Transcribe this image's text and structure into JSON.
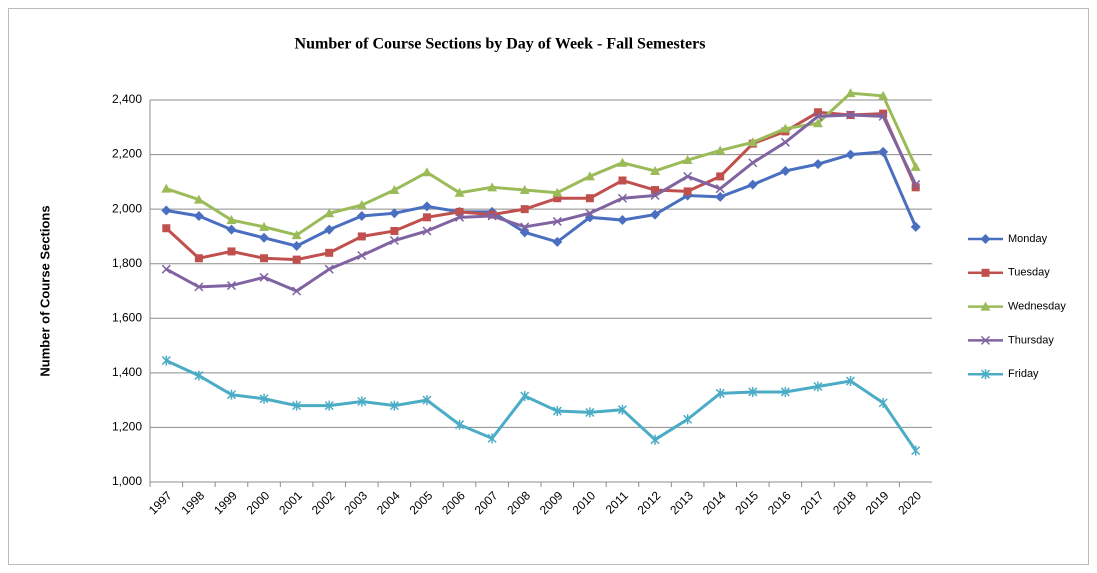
{
  "chart_data": {
    "type": "line",
    "title": "Number of Course Sections by Day of Week - Fall Semesters",
    "y_label": "Number of Course Sections",
    "categories": [
      "1997",
      "1998",
      "1999",
      "2000",
      "2001",
      "2002",
      "2003",
      "2004",
      "2005",
      "2006",
      "2007",
      "2008",
      "2009",
      "2010",
      "2011",
      "2012",
      "2013",
      "2014",
      "2015",
      "2016",
      "2017",
      "2018",
      "2019",
      "2020"
    ],
    "series": [
      {
        "name": "Monday",
        "color": "#4a6fc0",
        "marker": "diamond",
        "values": [
          1995,
          1975,
          1925,
          1895,
          1865,
          1925,
          1975,
          1985,
          2010,
          1990,
          1990,
          1915,
          1880,
          1970,
          1960,
          1980,
          2050,
          2045,
          2090,
          2140,
          2165,
          2200,
          2210,
          1935
        ]
      },
      {
        "name": "Tuesday",
        "color": "#c0504d",
        "marker": "square",
        "values": [
          1930,
          1820,
          1845,
          1820,
          1815,
          1840,
          1900,
          1920,
          1970,
          1990,
          1980,
          2000,
          2040,
          2040,
          2105,
          2070,
          2065,
          2120,
          2240,
          2285,
          2355,
          2345,
          2350,
          2080
        ]
      },
      {
        "name": "Wednesday",
        "color": "#9bbb59",
        "marker": "triangle",
        "values": [
          2075,
          2035,
          1960,
          1935,
          1905,
          1985,
          2015,
          2070,
          2135,
          2060,
          2080,
          2070,
          2060,
          2120,
          2170,
          2140,
          2180,
          2215,
          2245,
          2295,
          2315,
          2425,
          2415,
          2155
        ]
      },
      {
        "name": "Thursday",
        "color": "#8064a2",
        "marker": "x",
        "values": [
          1780,
          1715,
          1720,
          1750,
          1700,
          1780,
          1830,
          1885,
          1920,
          1970,
          1975,
          1935,
          1955,
          1985,
          2040,
          2050,
          2120,
          2075,
          2170,
          2245,
          2340,
          2345,
          2340,
          2090
        ]
      },
      {
        "name": "Friday",
        "color": "#4bacc6",
        "marker": "star",
        "values": [
          1445,
          1390,
          1320,
          1305,
          1280,
          1280,
          1295,
          1280,
          1300,
          1210,
          1160,
          1315,
          1260,
          1255,
          1265,
          1155,
          1230,
          1325,
          1330,
          1330,
          1350,
          1370,
          1290,
          1115
        ]
      }
    ],
    "ylim": [
      1000,
      2400
    ],
    "yticks": [
      {
        "value": 1000,
        "label": "1,000"
      },
      {
        "value": 1200,
        "label": "1,200"
      },
      {
        "value": 1400,
        "label": "1,400"
      },
      {
        "value": 1600,
        "label": "1,600"
      },
      {
        "value": 1800,
        "label": "1,800"
      },
      {
        "value": 2000,
        "label": "2,000"
      },
      {
        "value": 2200,
        "label": "2,200"
      },
      {
        "value": 2400,
        "label": "2,400"
      }
    ],
    "grid": true,
    "legend": "right"
  }
}
